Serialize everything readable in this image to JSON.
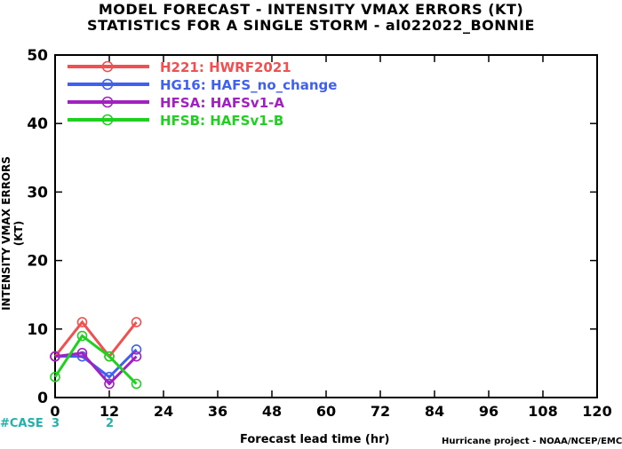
{
  "chart_data": {
    "type": "line",
    "title": "MODEL FORECAST - INTENSITY VMAX ERRORS (KT)",
    "subtitle": "STATISTICS FOR A SINGLE STORM - al022022_BONNIE",
    "xlabel": "Forecast lead time (hr)",
    "ylabel": "INTENSITY VMAX ERRORS (KT)",
    "xlim": [
      0,
      120
    ],
    "ylim": [
      0,
      50
    ],
    "xticks": [
      0,
      12,
      24,
      36,
      48,
      60,
      72,
      84,
      96,
      108,
      120
    ],
    "yticks": [
      0,
      10,
      20,
      30,
      40,
      50
    ],
    "grid": false,
    "legend_position": "top-left",
    "series": [
      {
        "name": "H221: HWRF2021",
        "color": "#f05050",
        "x": [
          0,
          6,
          12,
          18
        ],
        "y": [
          6,
          11,
          6,
          11
        ]
      },
      {
        "name": "HG16: HAFS_no_change",
        "color": "#4060f0",
        "x": [
          0,
          6,
          12,
          18
        ],
        "y": [
          6,
          6,
          3,
          7
        ]
      },
      {
        "name": "HFSA: HAFSv1-A",
        "color": "#a020c0",
        "x": [
          0,
          6,
          12,
          18
        ],
        "y": [
          6,
          6.5,
          2,
          6
        ]
      },
      {
        "name": "HFSB: HAFSv1-B",
        "color": "#20d020",
        "x": [
          0,
          6,
          12,
          18
        ],
        "y": [
          3,
          9,
          6,
          2
        ]
      }
    ],
    "cases": {
      "label": "#CASE",
      "values": [
        {
          "x": 0,
          "n": "3"
        },
        {
          "x": 12,
          "n": "2"
        }
      ]
    }
  },
  "credit": "Hurricane project - NOAA/NCEP/EMC"
}
